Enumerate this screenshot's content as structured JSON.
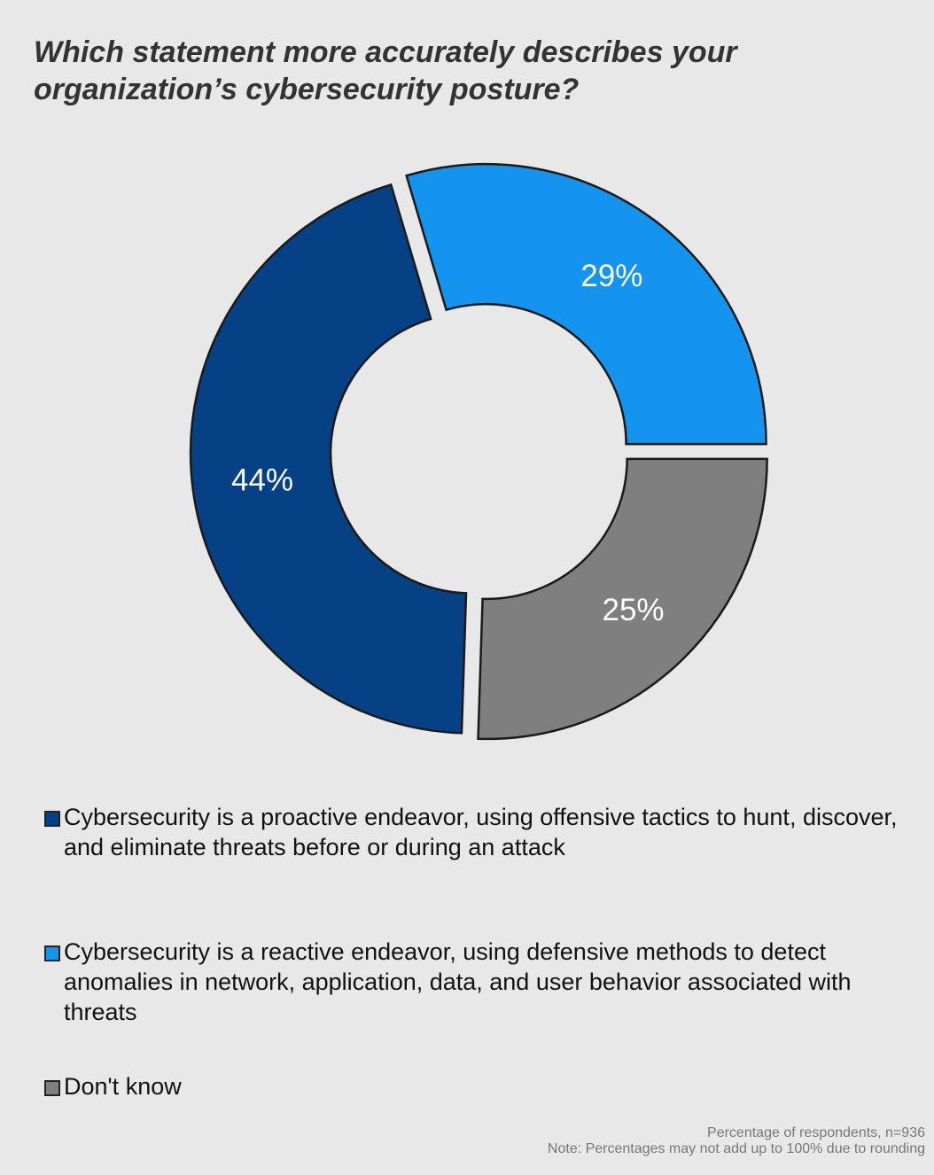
{
  "chart_data": {
    "type": "pie",
    "style": "donut",
    "title": "Which statement more accurately describes your organization’s cybersecurity posture?",
    "slices": [
      {
        "label": "Cybersecurity is a proactive endeavor, using offensive tactics to hunt, discover, and eliminate threats before or during an attack",
        "value": 44,
        "data_label": "44%",
        "color": "#074185"
      },
      {
        "label": "Cybersecurity is a reactive endeavor, using defensive methods to detect anomalies in network, application, data, and user behavior associated with threats",
        "value": 29,
        "data_label": "29%",
        "color": "#1494ee"
      },
      {
        "label": "Don't know",
        "value": 25,
        "data_label": "25%",
        "color": "#7f7f7f"
      }
    ],
    "legend_position": "bottom",
    "footnotes": [
      "Percentage of respondents, n=936",
      "Note: Percentages may not add up to 100% due to rounding"
    ]
  }
}
